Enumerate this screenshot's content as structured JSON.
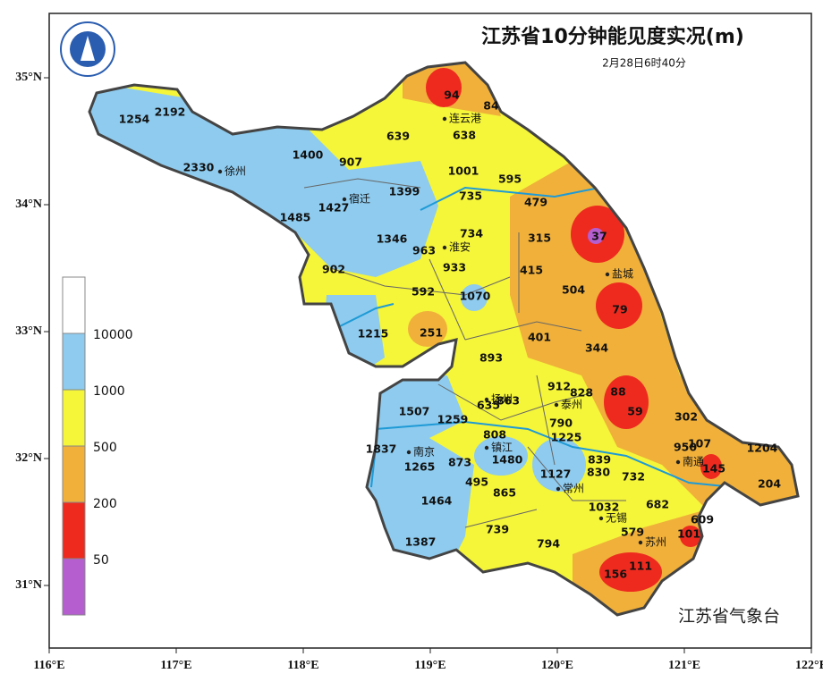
{
  "header": {
    "title": "江苏省10分钟能见度实况(m)",
    "subtitle": "2月28日6时40分"
  },
  "axes": {
    "x_ticks": [
      {
        "value": 116,
        "label": "116°E"
      },
      {
        "value": 117,
        "label": "117°E"
      },
      {
        "value": 118,
        "label": "118°E"
      },
      {
        "value": 119,
        "label": "119°E"
      },
      {
        "value": 120,
        "label": "120°E"
      },
      {
        "value": 121,
        "label": "121°E"
      },
      {
        "value": 122,
        "label": "122°E"
      }
    ],
    "y_ticks": [
      {
        "value": 31,
        "label": "31°N"
      },
      {
        "value": 32,
        "label": "32°N"
      },
      {
        "value": 33,
        "label": "33°N"
      },
      {
        "value": 34,
        "label": "34°N"
      },
      {
        "value": 35,
        "label": "35°N"
      }
    ]
  },
  "legend": {
    "labels": [
      50,
      200,
      500,
      1000,
      10000
    ]
  },
  "cities": [
    "连云港",
    "徐州",
    "宿迁",
    "淮安",
    "盐城",
    "扬州",
    "泰州",
    "南京",
    "镇江",
    "南通",
    "常州",
    "无锡",
    "苏州"
  ],
  "stations": [
    94,
    84,
    639,
    638,
    1254,
    2192,
    2330,
    1400,
    907,
    1001,
    595,
    1399,
    735,
    479,
    1427,
    1485,
    37,
    1346,
    734,
    315,
    963,
    933,
    902,
    415,
    592,
    1070,
    504,
    79,
    1215,
    251,
    401,
    344,
    893,
    912,
    828,
    88,
    635,
    863,
    59,
    1507,
    1259,
    790,
    302,
    808,
    1225,
    1837,
    1480,
    873,
    950,
    107,
    1204,
    1265,
    839,
    1127,
    830,
    145,
    732,
    495,
    204,
    865,
    1464,
    1032,
    682,
    609,
    739,
    579,
    101,
    794,
    1387,
    111,
    156
  ],
  "footer": "江苏省气象台"
}
